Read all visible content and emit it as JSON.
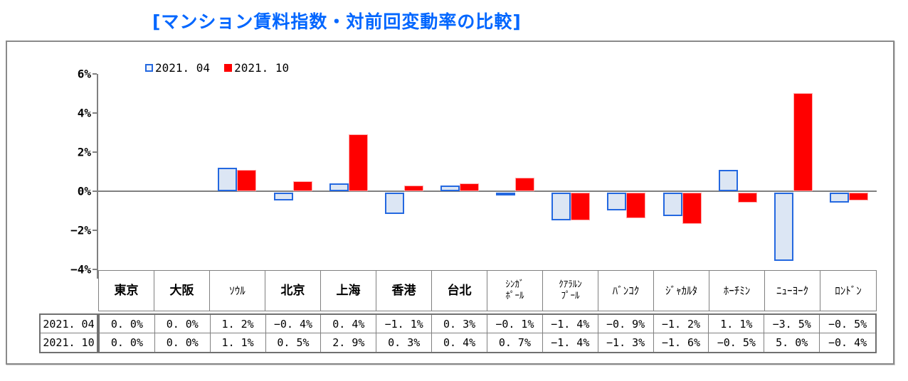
{
  "title": "[マンション賃料指数・対前回変動率の比較]",
  "colors": {
    "title": "#0066ff",
    "series1_fill": "#dce6f4",
    "series1_border": "#2468e0",
    "series2_fill": "#ff0000",
    "series2_border": "#ffaaaa",
    "axis": "#808080"
  },
  "legend": {
    "items": [
      {
        "label": "2021. 04",
        "swatch": "light-blue-outlined-square"
      },
      {
        "label": "2021. 10",
        "swatch": "red-square"
      }
    ]
  },
  "y_axis": {
    "tick_labels": [
      "6%",
      "4%",
      "2%",
      "0%",
      "−2%",
      "−4%"
    ],
    "max": 6,
    "min": -4,
    "step": 2
  },
  "chart_data": {
    "type": "bar",
    "title": "[マンション賃料指数・対前回変動率の比較]",
    "categories": [
      "東京",
      "大阪",
      "ｿｳﾙ",
      "北京",
      "上海",
      "香港",
      "台北",
      "ｼﾝｶﾞﾎﾟｰﾙ",
      "ｸｱﾗﾙﾝﾌﾟｰﾙ",
      "ﾊﾞﾝｺｸ",
      "ｼﾞｬｶﾙﾀ",
      "ﾎｰﾁﾐﾝ",
      "ﾆｭｰﾖｰｸ",
      "ﾛﾝﾄﾞﾝ"
    ],
    "series": [
      {
        "name": "2021.04",
        "values": [
          0.0,
          0.0,
          1.2,
          -0.4,
          0.4,
          -1.1,
          0.3,
          -0.1,
          -1.4,
          -0.9,
          -1.2,
          1.1,
          -3.5,
          -0.5
        ]
      },
      {
        "name": "2021.10",
        "values": [
          0.0,
          0.0,
          1.1,
          0.5,
          2.9,
          0.3,
          0.4,
          0.7,
          -1.4,
          -1.3,
          -1.6,
          -0.5,
          5.0,
          -0.4
        ]
      }
    ],
    "xlabel": "",
    "ylabel": "",
    "ylim": [
      -4,
      6
    ],
    "grid": false,
    "legend_position": "top-left"
  },
  "table": {
    "col_headers": [
      "東京",
      "大阪",
      "ｿｳﾙ",
      "北京",
      "上海",
      "香港",
      "台北",
      "ｼﾝｶﾞ\nﾎﾟｰﾙ",
      "ｸｱﾗﾙﾝ\nﾌﾟｰﾙ",
      "ﾊﾞﾝｺｸ",
      "ｼﾞｬｶﾙﾀ",
      "ﾎｰﾁﾐﾝ",
      "ﾆｭｰﾖｰｸ",
      "ﾛﾝﾄﾞﾝ"
    ],
    "rows": [
      {
        "label": "2021. 04",
        "values": [
          "0. 0%",
          "0. 0%",
          "1. 2%",
          "−0. 4%",
          "0. 4%",
          "−1. 1%",
          "0. 3%",
          "−0. 1%",
          "−1. 4%",
          "−0. 9%",
          "−1. 2%",
          "1. 1%",
          "−3. 5%",
          "−0. 5%"
        ]
      },
      {
        "label": "2021. 10",
        "values": [
          "0. 0%",
          "0. 0%",
          "1. 1%",
          "0. 5%",
          "2. 9%",
          "0. 3%",
          "0. 4%",
          "0. 7%",
          "−1. 4%",
          "−1. 3%",
          "−1. 6%",
          "−0. 5%",
          "5. 0%",
          "−0. 4%"
        ]
      }
    ]
  }
}
